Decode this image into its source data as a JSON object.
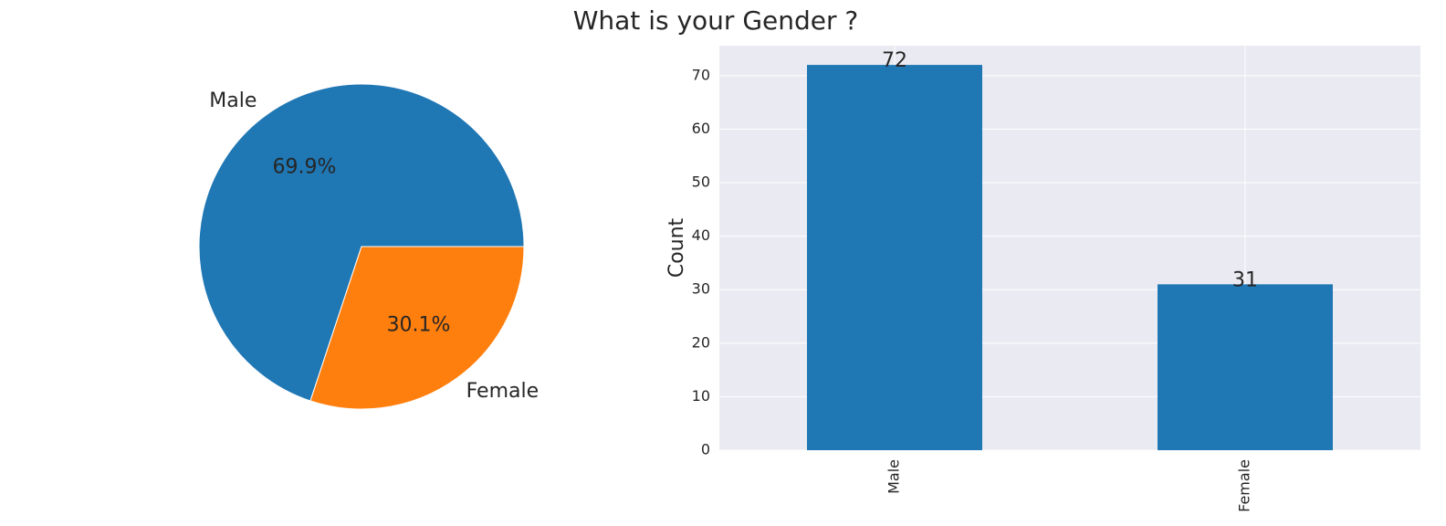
{
  "title": "What is your Gender ?",
  "chart_data": [
    {
      "type": "pie",
      "labels": [
        "Male",
        "Female"
      ],
      "values": [
        72,
        31
      ],
      "percent_labels": [
        "69.9%",
        "30.1%"
      ],
      "colors": [
        "#1f77b4",
        "#ff7f0e"
      ],
      "start_angle_deg": 0,
      "direction": "counterclockwise",
      "title": ""
    },
    {
      "type": "bar",
      "categories": [
        "Male",
        "Female"
      ],
      "values": [
        72,
        31
      ],
      "data_labels": [
        "72",
        "31"
      ],
      "color": "#1f77b4",
      "xlabel": "",
      "ylabel": "Count",
      "ylim": [
        0,
        75.6
      ],
      "yticks": [
        0,
        10,
        20,
        30,
        40,
        50,
        60,
        70
      ],
      "ytick_labels": [
        "0",
        "10",
        "20",
        "30",
        "40",
        "50",
        "60",
        "70"
      ],
      "xtick_rotation": "vertical",
      "grid": true,
      "background": "#eaeaf2"
    }
  ]
}
